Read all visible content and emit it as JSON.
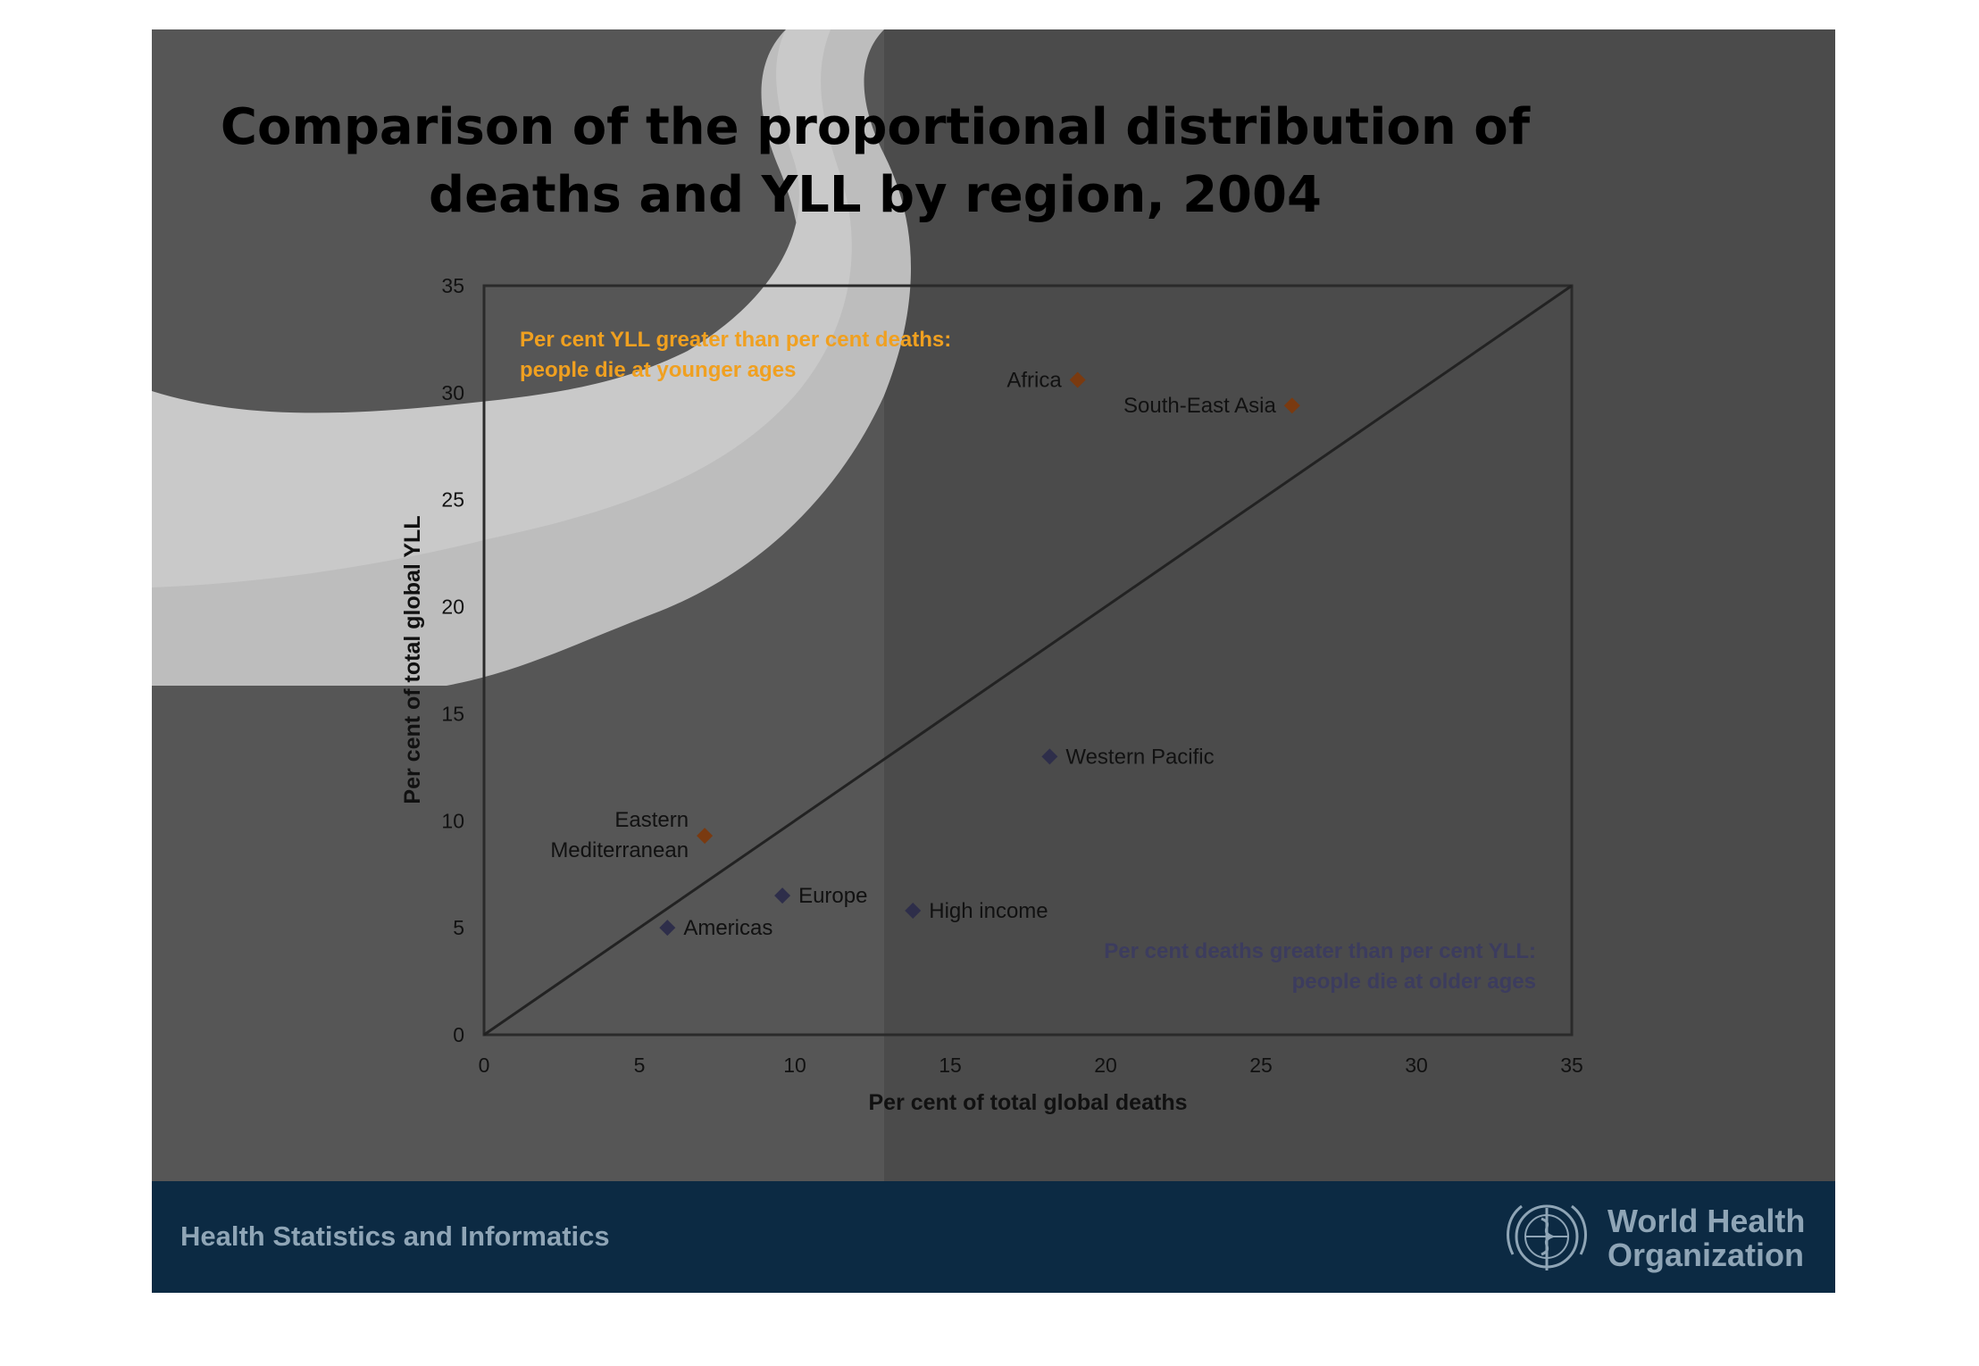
{
  "slide": {
    "title_line1": "Comparison of the proportional distribution of",
    "title_line2": "deaths and YLL by region, 2004",
    "footer_text": "Health Statistics and Informatics",
    "org_name_line1": "World Health",
    "org_name_line2": "Organization",
    "colors": {
      "background": "#565656",
      "footer": "#0c2a43",
      "footer_text": "#8fa5b6",
      "title": "#000000"
    }
  },
  "chart_data": {
    "type": "scatter",
    "title": "",
    "xlabel": "Per cent of total global deaths",
    "ylabel": "Per cent of total global YLL",
    "xlim": [
      0,
      35
    ],
    "ylim": [
      0,
      35
    ],
    "xticks": [
      "0",
      "5",
      "10",
      "15",
      "20",
      "25",
      "30",
      "35"
    ],
    "yticks": [
      "0",
      "5",
      "10",
      "15",
      "20",
      "25",
      "30",
      "35"
    ],
    "grid": false,
    "reference_line": {
      "from": [
        0,
        0
      ],
      "to": [
        35,
        35
      ]
    },
    "annotations": {
      "upper": {
        "line1": "Per cent YLL greater than per cent deaths:",
        "line2": "people die at younger ages",
        "color": "#f0a020"
      },
      "lower": {
        "line1": "Per cent deaths greater than per cent YLL:",
        "line2": "people die at older ages",
        "color": "#3c3c5e"
      }
    },
    "points": [
      {
        "label": "Africa",
        "x": 19.1,
        "y": 30.6,
        "color": "#7a3a10",
        "label_side": "left"
      },
      {
        "label": "South-East Asia",
        "x": 26.0,
        "y": 29.4,
        "color": "#7a3a10",
        "label_side": "left"
      },
      {
        "label": "Western Pacific",
        "x": 18.2,
        "y": 13.0,
        "color": "#2e2e4a",
        "label_side": "right"
      },
      {
        "label": "Eastern Mediterranean",
        "label_line1": "Eastern",
        "label_line2": "Mediterranean",
        "x": 7.1,
        "y": 9.3,
        "color": "#7a3a10",
        "label_side": "left"
      },
      {
        "label": "Europe",
        "x": 9.6,
        "y": 6.5,
        "color": "#2e2e4a",
        "label_side": "right"
      },
      {
        "label": "High income",
        "x": 13.8,
        "y": 5.8,
        "color": "#2e2e4a",
        "label_side": "right"
      },
      {
        "label": "Americas",
        "x": 5.9,
        "y": 5.0,
        "color": "#2e2e4a",
        "label_side": "right"
      }
    ]
  }
}
